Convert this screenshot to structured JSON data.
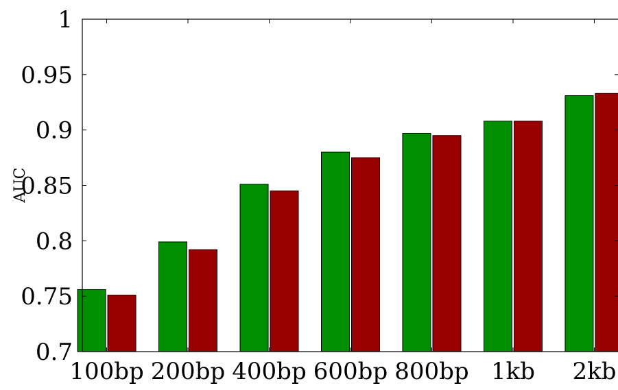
{
  "chart_data": {
    "type": "bar",
    "title": "",
    "xlabel": "",
    "ylabel": "AUC",
    "ylim": [
      0.7,
      1.0
    ],
    "yticks": [
      0.7,
      0.75,
      0.8,
      0.85,
      0.9,
      0.95,
      1.0
    ],
    "ytick_labels": [
      "0.7",
      "0.75",
      "0.8",
      "0.85",
      "0.9",
      "0.95",
      "1"
    ],
    "categories": [
      "100bp",
      "200bp",
      "400bp",
      "600bp",
      "800bp",
      "1kb",
      "2kb"
    ],
    "series": [
      {
        "color": "#008f00",
        "values": [
          0.756,
          0.799,
          0.851,
          0.88,
          0.897,
          0.908,
          0.931
        ]
      },
      {
        "color": "#990000",
        "values": [
          0.751,
          0.792,
          0.845,
          0.875,
          0.895,
          0.908,
          0.933
        ]
      }
    ],
    "grid": false,
    "legend": "none"
  }
}
